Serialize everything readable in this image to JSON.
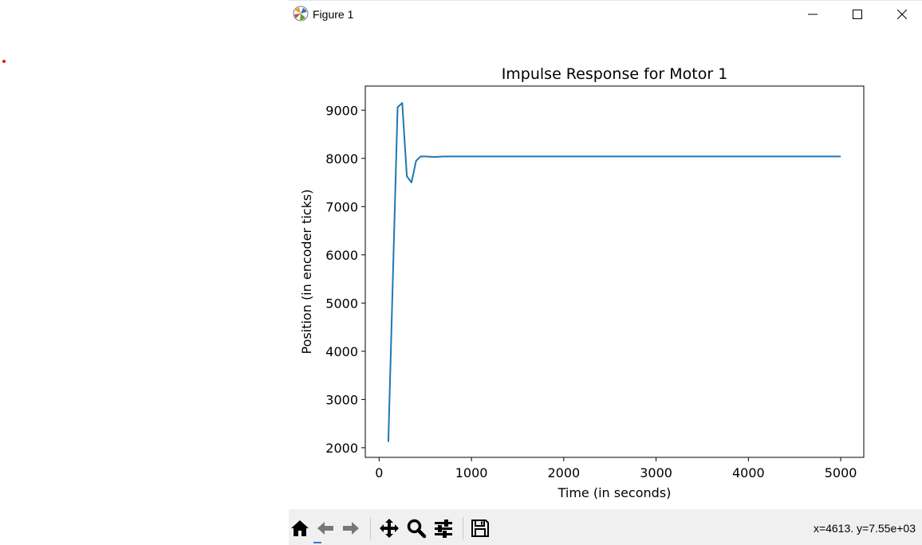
{
  "window": {
    "title": "Figure 1",
    "buttons": {
      "minimize": "minimize",
      "maximize": "maximize",
      "close": "close"
    }
  },
  "toolbar": {
    "icons": [
      "home-icon",
      "back-icon",
      "forward-icon",
      "pan-icon",
      "zoom-icon",
      "configure-subplots-icon",
      "save-icon"
    ],
    "coords_text": "x=4613. y=7.55e+03"
  },
  "colors": {
    "line": "#1f77b4",
    "toolbar_bg": "#f0f0f0"
  },
  "chart_data": {
    "type": "line",
    "title": "Impulse Response for Motor 1",
    "xlabel": "Time (in seconds)",
    "ylabel": "Position (in encoder ticks)",
    "xlim": [
      -150,
      5250
    ],
    "ylim": [
      1800,
      9500
    ],
    "xticks": [
      0,
      1000,
      2000,
      3000,
      4000,
      5000
    ],
    "yticks": [
      2000,
      3000,
      4000,
      5000,
      6000,
      7000,
      8000,
      9000
    ],
    "grid": false,
    "series": [
      {
        "x": [
          100,
          200,
          250,
          300,
          350,
          400,
          450,
          500,
          600,
          700,
          800,
          1000,
          5000
        ],
        "y": [
          2120,
          9060,
          9150,
          7630,
          7500,
          7950,
          8040,
          8040,
          8030,
          8040,
          8040,
          8040,
          8040
        ]
      }
    ]
  }
}
